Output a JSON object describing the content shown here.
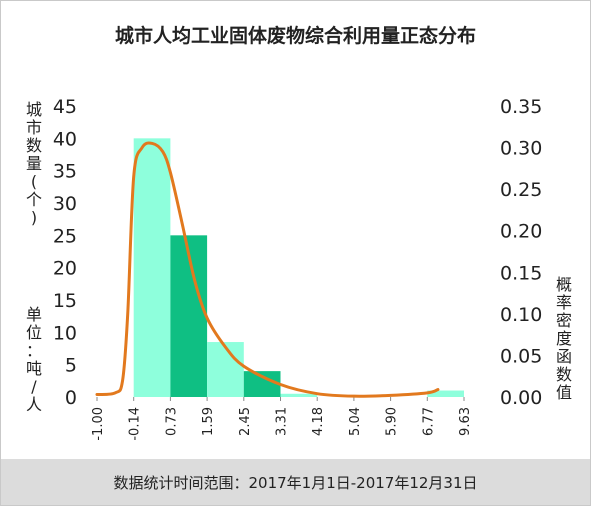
{
  "chart_data": {
    "type": "bar",
    "title": "城市人均工业固体废物综合利用量正态分布",
    "ylabel_left": "城市数量(个)",
    "unit_label": "单位：吨/人",
    "ylabel_right": "概率密度函数值",
    "x_tick_labels": [
      "-1.00",
      "-0.14",
      "0.73",
      "1.59",
      "2.45",
      "3.31",
      "4.18",
      "5.04",
      "5.90",
      "6.77",
      "9.63"
    ],
    "y_left_ticks": [
      "0",
      "5",
      "10",
      "15",
      "20",
      "25",
      "30",
      "35",
      "40",
      "45"
    ],
    "y_right_ticks": [
      "0.00",
      "0.05",
      "0.10",
      "0.15",
      "0.20",
      "0.25",
      "0.30",
      "0.35"
    ],
    "ylim_left": [
      0,
      45
    ],
    "ylim_right": [
      0,
      0.35
    ],
    "bins": [
      {
        "from": "-0.14",
        "to": "0.73",
        "count": 40,
        "color": "#8effdc"
      },
      {
        "from": "0.73",
        "to": "1.59",
        "count": 25,
        "color": "#0fbf83"
      },
      {
        "from": "1.59",
        "to": "2.45",
        "count": 8.5,
        "color": "#8effdc"
      },
      {
        "from": "2.45",
        "to": "3.31",
        "count": 4,
        "color": "#0fbf83"
      },
      {
        "from": "3.31",
        "to": "4.18",
        "count": 0.5,
        "color": "#8effdc"
      },
      {
        "from": "6.77",
        "to": "9.63",
        "count": 1,
        "color": "#8effdc"
      }
    ],
    "density_curve": {
      "color": "#e2791e",
      "points": [
        {
          "x": "-1.00",
          "y": 0.003
        },
        {
          "x": "-0.57",
          "y": 0.005
        },
        {
          "x": "-0.40",
          "y": 0.02
        },
        {
          "x": "-0.28",
          "y": 0.1
        },
        {
          "x": "-0.14",
          "y": 0.265
        },
        {
          "x": "0.06",
          "y": 0.3
        },
        {
          "x": "0.30",
          "y": 0.305
        },
        {
          "x": "0.55",
          "y": 0.295
        },
        {
          "x": "0.73",
          "y": 0.27
        },
        {
          "x": "1.00",
          "y": 0.21
        },
        {
          "x": "1.30",
          "y": 0.14
        },
        {
          "x": "1.59",
          "y": 0.095
        },
        {
          "x": "2.02",
          "y": 0.06
        },
        {
          "x": "2.45",
          "y": 0.037
        },
        {
          "x": "3.31",
          "y": 0.015
        },
        {
          "x": "4.18",
          "y": 0.004
        },
        {
          "x": "5.04",
          "y": 0.001
        },
        {
          "x": "5.90",
          "y": 0.002
        },
        {
          "x": "6.77",
          "y": 0.005
        },
        {
          "x": "7.60",
          "y": 0.009
        }
      ]
    }
  },
  "footer": {
    "note": "数据统计时间范围：2017年1月1日-2017年12月31日"
  }
}
